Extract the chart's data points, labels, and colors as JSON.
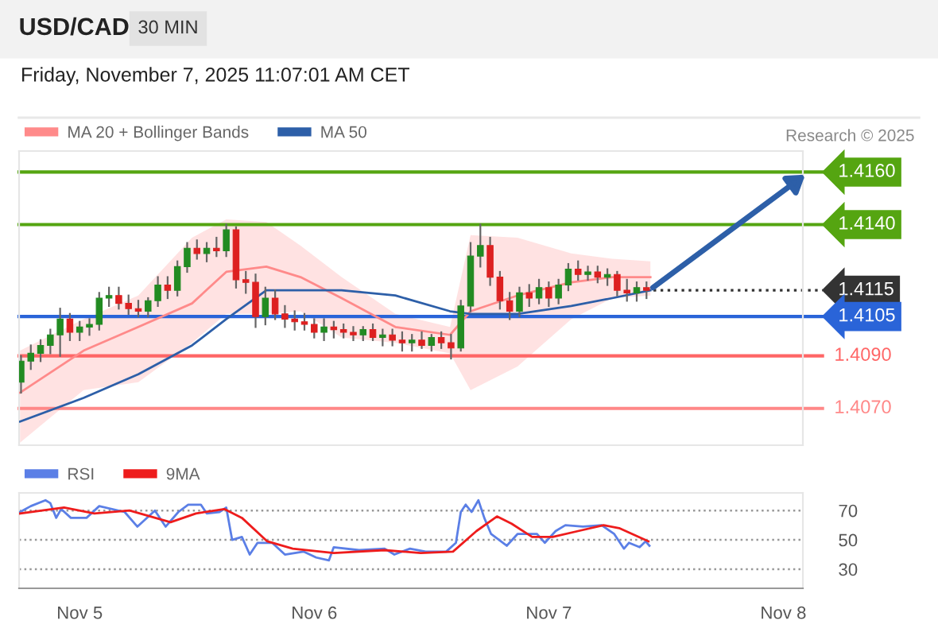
{
  "chart_data": [
    {
      "type": "candlestick",
      "title": "USD/CAD",
      "subtitle": "Friday, November 7, 2025 11:07:01 AM CET",
      "annotations": [
        "30 MIN",
        "Research © 2025"
      ],
      "x": [
        "2025-11-04T18:00",
        "2025-11-04T19:00",
        "2025-11-04T20:00",
        "2025-11-04T21:00",
        "2025-11-04T22:00",
        "2025-11-04T23:00",
        "2025-11-05T00:00",
        "2025-11-05T01:00",
        "2025-11-05T02:00",
        "2025-11-05T03:00",
        "2025-11-05T04:00",
        "2025-11-05T05:00",
        "2025-11-05T06:00",
        "2025-11-05T07:00",
        "2025-11-05T08:00",
        "2025-11-05T09:00",
        "2025-11-05T10:00",
        "2025-11-05T11:00",
        "2025-11-05T12:00",
        "2025-11-05T13:00",
        "2025-11-05T14:00",
        "2025-11-05T15:00",
        "2025-11-05T16:00",
        "2025-11-05T17:00",
        "2025-11-05T18:00",
        "2025-11-05T19:00",
        "2025-11-05T20:00",
        "2025-11-05T21:00",
        "2025-11-05T22:00",
        "2025-11-05T23:00",
        "2025-11-06T00:00",
        "2025-11-06T01:00",
        "2025-11-06T02:00",
        "2025-11-06T03:00",
        "2025-11-06T04:00",
        "2025-11-06T05:00",
        "2025-11-06T06:00",
        "2025-11-06T07:00",
        "2025-11-06T08:00",
        "2025-11-06T09:00",
        "2025-11-06T10:00",
        "2025-11-06T11:00",
        "2025-11-06T12:00",
        "2025-11-06T13:00",
        "2025-11-06T14:00",
        "2025-11-06T15:00",
        "2025-11-06T16:00",
        "2025-11-06T17:00",
        "2025-11-06T18:00",
        "2025-11-06T19:00",
        "2025-11-06T20:00",
        "2025-11-06T21:00",
        "2025-11-06T22:00",
        "2025-11-06T23:00",
        "2025-11-07T00:00",
        "2025-11-07T01:00",
        "2025-11-07T02:00",
        "2025-11-07T03:00",
        "2025-11-07T04:00",
        "2025-11-07T05:00",
        "2025-11-07T06:00",
        "2025-11-07T07:00",
        "2025-11-07T08:00",
        "2025-11-07T09:00",
        "2025-11-07T10:00"
      ],
      "ohlc": [
        [
          1.408,
          1.409,
          1.4076,
          1.4088
        ],
        [
          1.4088,
          1.4094,
          1.4085,
          1.4091
        ],
        [
          1.4091,
          1.4096,
          1.4088,
          1.4094
        ],
        [
          1.4094,
          1.41,
          1.4091,
          1.4098
        ],
        [
          1.4098,
          1.4108,
          1.409,
          1.4104
        ],
        [
          1.4104,
          1.4106,
          1.4096,
          1.4099
        ],
        [
          1.4099,
          1.4103,
          1.4096,
          1.4101
        ],
        [
          1.4101,
          1.4104,
          1.4098,
          1.4102
        ],
        [
          1.4102,
          1.4114,
          1.41,
          1.4112
        ],
        [
          1.4112,
          1.4116,
          1.4109,
          1.4113
        ],
        [
          1.4113,
          1.4116,
          1.4108,
          1.411
        ],
        [
          1.411,
          1.4113,
          1.4106,
          1.4108
        ],
        [
          1.4108,
          1.4111,
          1.4105,
          1.4107
        ],
        [
          1.4107,
          1.4112,
          1.4105,
          1.4111
        ],
        [
          1.4111,
          1.412,
          1.4109,
          1.4117
        ],
        [
          1.4117,
          1.412,
          1.4112,
          1.4115
        ],
        [
          1.4115,
          1.4126,
          1.4113,
          1.4124
        ],
        [
          1.4124,
          1.4133,
          1.4122,
          1.4131
        ],
        [
          1.4131,
          1.4134,
          1.4127,
          1.4129
        ],
        [
          1.4129,
          1.4133,
          1.4126,
          1.4131
        ],
        [
          1.4131,
          1.4135,
          1.4128,
          1.413
        ],
        [
          1.413,
          1.414,
          1.4128,
          1.4138
        ],
        [
          1.4138,
          1.4139,
          1.4116,
          1.4119
        ],
        [
          1.4119,
          1.4122,
          1.4114,
          1.4118
        ],
        [
          1.4118,
          1.4121,
          1.4101,
          1.4105
        ],
        [
          1.4105,
          1.4116,
          1.4102,
          1.4112
        ],
        [
          1.4112,
          1.4115,
          1.4104,
          1.4106
        ],
        [
          1.4106,
          1.4109,
          1.4101,
          1.4104
        ],
        [
          1.4104,
          1.4107,
          1.41,
          1.4103
        ],
        [
          1.4103,
          1.4106,
          1.41,
          1.4102
        ],
        [
          1.4102,
          1.4104,
          1.4097,
          1.4099
        ],
        [
          1.4099,
          1.4104,
          1.4096,
          1.4101
        ],
        [
          1.4101,
          1.4103,
          1.4097,
          1.41
        ],
        [
          1.41,
          1.4102,
          1.4097,
          1.4099
        ],
        [
          1.4099,
          1.4101,
          1.4096,
          1.4098
        ],
        [
          1.4098,
          1.4101,
          1.4096,
          1.41
        ],
        [
          1.41,
          1.4102,
          1.4096,
          1.4097
        ],
        [
          1.4097,
          1.41,
          1.4094,
          1.4098
        ],
        [
          1.4098,
          1.41,
          1.4094,
          1.4096
        ],
        [
          1.4096,
          1.4099,
          1.4092,
          1.4095
        ],
        [
          1.4095,
          1.4098,
          1.4092,
          1.4096
        ],
        [
          1.4096,
          1.4099,
          1.4093,
          1.4094
        ],
        [
          1.4094,
          1.4098,
          1.4092,
          1.4097
        ],
        [
          1.4097,
          1.4099,
          1.4093,
          1.4095
        ],
        [
          1.4095,
          1.4098,
          1.4089,
          1.4093
        ],
        [
          1.4093,
          1.4111,
          1.4092,
          1.4109
        ],
        [
          1.4109,
          1.4133,
          1.4107,
          1.4128
        ],
        [
          1.4128,
          1.414,
          1.4124,
          1.4132
        ],
        [
          1.4132,
          1.4135,
          1.4117,
          1.412
        ],
        [
          1.412,
          1.4122,
          1.4108,
          1.4111
        ],
        [
          1.4111,
          1.4114,
          1.4104,
          1.4107
        ],
        [
          1.4107,
          1.4116,
          1.4105,
          1.4114
        ],
        [
          1.4114,
          1.4117,
          1.4109,
          1.4112
        ],
        [
          1.4112,
          1.4119,
          1.411,
          1.4116
        ],
        [
          1.4116,
          1.4118,
          1.4109,
          1.4112
        ],
        [
          1.4112,
          1.4119,
          1.411,
          1.4117
        ],
        [
          1.4117,
          1.4125,
          1.4115,
          1.4123
        ],
        [
          1.4123,
          1.4126,
          1.4119,
          1.4121
        ],
        [
          1.4121,
          1.4124,
          1.4119,
          1.4122
        ],
        [
          1.4122,
          1.4124,
          1.4118,
          1.412
        ],
        [
          1.412,
          1.4123,
          1.4117,
          1.4121
        ],
        [
          1.4121,
          1.4122,
          1.4113,
          1.4115
        ],
        [
          1.4115,
          1.4119,
          1.4111,
          1.4114
        ],
        [
          1.4114,
          1.4118,
          1.4111,
          1.4116
        ],
        [
          1.4116,
          1.4118,
          1.4112,
          1.4115
        ]
      ],
      "colors": [
        "#228b22",
        "#228b22",
        "#228b22",
        "#228b22",
        "#228b22",
        "#dd2020",
        "#228b22",
        "#228b22",
        "#228b22",
        "#228b22",
        "#dd2020",
        "#dd2020",
        "#dd2020",
        "#228b22",
        "#228b22",
        "#dd2020",
        "#228b22",
        "#228b22",
        "#dd2020",
        "#228b22",
        "#dd2020",
        "#228b22",
        "#dd2020",
        "#dd2020",
        "#dd2020",
        "#228b22",
        "#dd2020",
        "#dd2020",
        "#dd2020",
        "#dd2020",
        "#dd2020",
        "#228b22",
        "#dd2020",
        "#dd2020",
        "#dd2020",
        "#228b22",
        "#dd2020",
        "#228b22",
        "#dd2020",
        "#dd2020",
        "#228b22",
        "#dd2020",
        "#228b22",
        "#dd2020",
        "#dd2020",
        "#228b22",
        "#228b22",
        "#228b22",
        "#dd2020",
        "#dd2020",
        "#dd2020",
        "#228b22",
        "#dd2020",
        "#228b22",
        "#dd2020",
        "#228b22",
        "#228b22",
        "#dd2020",
        "#228b22",
        "#dd2020",
        "#228b22",
        "#dd2020",
        "#dd2020",
        "#228b22",
        "#dd2020"
      ],
      "series": [
        {
          "name": "MA 20 + Bollinger Bands",
          "type": "line",
          "color": "#ff8a8a",
          "x": [
            "2025-11-04T17:54",
            "2025-11-05T00:24",
            "2025-11-05T06:00",
            "2025-11-05T11:30",
            "2025-11-05T15:00",
            "2025-11-05T19:06",
            "2025-11-05T22:36",
            "2025-11-06T02:48",
            "2025-11-06T08:18",
            "2025-11-06T13:54",
            "2025-11-06T16:00",
            "2025-11-06T20:48",
            "2025-11-07T02:18",
            "2025-11-07T06:30",
            "2025-11-07T10:24"
          ],
          "values": [
            1.4076,
            1.4092,
            1.4101,
            1.411,
            1.4122,
            1.4124,
            1.412,
            1.4112,
            1.4101,
            1.4098,
            1.4107,
            1.4113,
            1.4118,
            1.412,
            1.412
          ],
          "upper": [
            1.4092,
            1.4104,
            1.4113,
            1.4135,
            1.4142,
            1.4141,
            1.4132,
            1.412,
            1.4106,
            1.4101,
            1.4136,
            1.4135,
            1.4129,
            1.4127,
            1.4126
          ],
          "lower": [
            1.4057,
            1.4077,
            1.408,
            1.4095,
            1.4106,
            1.4106,
            1.4107,
            1.4097,
            1.4095,
            1.4091,
            1.4077,
            1.4086,
            1.4104,
            1.4112,
            1.4113
          ]
        },
        {
          "name": "MA 50",
          "type": "line",
          "color": "#2d5fa8",
          "x": [
            "2025-11-04T17:54",
            "2025-11-05T00:24",
            "2025-11-05T06:00",
            "2025-11-05T11:30",
            "2025-11-05T15:00",
            "2025-11-05T19:06",
            "2025-11-05T22:36",
            "2025-11-06T00:00",
            "2025-11-06T02:48",
            "2025-11-06T08:18",
            "2025-11-06T13:54",
            "2025-11-06T16:00",
            "2025-11-06T20:48",
            "2025-11-07T02:18",
            "2025-11-07T06:30",
            "2025-11-07T10:24"
          ],
          "values": [
            1.4065,
            1.4074,
            1.4083,
            1.4094,
            1.4104,
            1.4115,
            1.4115,
            1.4115,
            1.4115,
            1.4113,
            1.4107,
            1.4106,
            1.4106,
            1.4109,
            1.4112,
            1.4115
          ]
        }
      ],
      "ref_lines": [
        {
          "axis": "y",
          "value": 1.416,
          "label": "1.4160",
          "color": "#55a511",
          "line_style": "solid"
        },
        {
          "axis": "y",
          "value": 1.414,
          "label": "1.4140",
          "color": "#55a511",
          "line_style": "solid"
        },
        {
          "axis": "y",
          "value": 1.4115,
          "label": "1.4115",
          "color": "#333333",
          "line_style": "dotted"
        },
        {
          "axis": "y",
          "value": 1.4105,
          "label": "1.4105",
          "color": "#2a64d8",
          "line_style": "solid"
        },
        {
          "axis": "y",
          "value": 1.409,
          "label": "1.4090",
          "color": "#ff6666",
          "line_style": "solid"
        },
        {
          "axis": "y",
          "value": 1.407,
          "label": "1.4070",
          "color": "#ff8888",
          "line_style": "solid"
        }
      ],
      "xlim": [
        "2025-11-04T17:48",
        "2025-11-08T02:00"
      ],
      "ylim": [
        1.4056,
        1.4168
      ],
      "legend": "top left",
      "grid": false,
      "tick_labels": false
    },
    {
      "type": "line",
      "series": [
        {
          "name": "RSI",
          "color": "#5b7fe6",
          "x": [
            "2025-11-04T17:54",
            "2025-11-04T19:00",
            "2025-11-04T20:30",
            "2025-11-04T21:00",
            "2025-11-04T21:36",
            "2025-11-04T22:06",
            "2025-11-04T23:06",
            "2025-11-05T00:42",
            "2025-11-05T02:00",
            "2025-11-05T04:36",
            "2025-11-05T05:54",
            "2025-11-05T07:42",
            "2025-11-05T08:48",
            "2025-11-05T10:06",
            "2025-11-05T11:06",
            "2025-11-05T12:24",
            "2025-11-05T13:00",
            "2025-11-05T14:18",
            "2025-11-05T15:00",
            "2025-11-05T15:36",
            "2025-11-05T16:36",
            "2025-11-05T17:24",
            "2025-11-05T18:12",
            "2025-11-05T19:42",
            "2025-11-05T21:00",
            "2025-11-05T22:54",
            "2025-11-06T00:12",
            "2025-11-06T01:30",
            "2025-11-06T02:00",
            "2025-11-06T04:36",
            "2025-11-06T07:12",
            "2025-11-06T08:12",
            "2025-11-06T09:48",
            "2025-11-06T11:24",
            "2025-11-06T13:30",
            "2025-11-06T14:30",
            "2025-11-06T15:00",
            "2025-11-06T15:30",
            "2025-11-06T16:06",
            "2025-11-06T16:48",
            "2025-11-06T17:24",
            "2025-11-06T18:06",
            "2025-11-06T19:42",
            "2025-11-06T20:48",
            "2025-11-06T22:48",
            "2025-11-06T23:36",
            "2025-11-07T00:42",
            "2025-11-07T01:42",
            "2025-11-07T03:30",
            "2025-11-07T05:24",
            "2025-11-07T06:42",
            "2025-11-07T07:42",
            "2025-11-07T08:12",
            "2025-11-07T09:18",
            "2025-11-07T09:54",
            "2025-11-07T10:18"
          ],
          "values": [
            69,
            73,
            77,
            75,
            65,
            71,
            65,
            65,
            73,
            69,
            59,
            70,
            59,
            69,
            74,
            74,
            68,
            69,
            72,
            50,
            52,
            40,
            48,
            48,
            40,
            42,
            38,
            36,
            45,
            43,
            44,
            40,
            44,
            42,
            42,
            48,
            69,
            74,
            69,
            77,
            65,
            54,
            46,
            54,
            54,
            48,
            56,
            60,
            59,
            60,
            54,
            44,
            48,
            45,
            49,
            46
          ]
        },
        {
          "name": "9MA",
          "color": "#ee1c1c",
          "x": [
            "2025-11-04T17:54",
            "2025-11-04T22:24",
            "2025-11-05T01:30",
            "2025-11-05T05:06",
            "2025-11-05T09:18",
            "2025-11-05T11:54",
            "2025-11-05T14:48",
            "2025-11-05T16:36",
            "2025-11-05T19:12",
            "2025-11-05T21:48",
            "2025-11-06T02:00",
            "2025-11-06T07:12",
            "2025-11-06T10:54",
            "2025-11-06T14:12",
            "2025-11-06T16:36",
            "2025-11-06T18:42",
            "2025-11-06T20:12",
            "2025-11-06T22:18",
            "2025-11-07T00:24",
            "2025-11-07T03:00",
            "2025-11-07T05:36",
            "2025-11-07T07:12",
            "2025-11-07T10:12"
          ],
          "values": [
            68,
            72,
            68,
            70,
            62,
            68,
            71,
            65,
            49,
            44,
            41,
            43,
            41,
            42,
            56,
            66,
            61,
            52,
            52,
            56,
            60,
            58,
            49
          ]
        }
      ],
      "xlim": [
        "2025-11-04T17:48",
        "2025-11-08T02:00"
      ],
      "ylim": [
        17,
        82
      ],
      "yticks": [
        30,
        50,
        70
      ],
      "xticks": [
        {
          "value": "2025-11-05",
          "label": "Nov 5"
        },
        {
          "value": "2025-11-06",
          "label": "Nov 6"
        },
        {
          "value": "2025-11-07",
          "label": "Nov 7"
        },
        {
          "value": "2025-11-08",
          "label": "Nov 8"
        }
      ],
      "grid": "y",
      "legend": "top left"
    }
  ]
}
